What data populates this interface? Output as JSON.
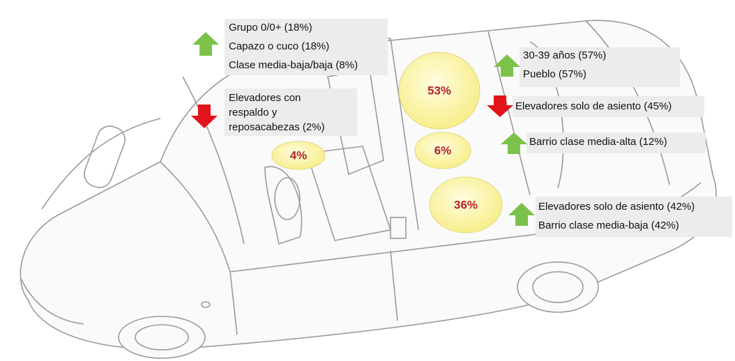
{
  "callouts": [
    [
      "Grupo 0/0+ (18%)",
      "Capazo o cuco (18%)",
      "Clase media-baja/baja (8%)"
    ],
    [
      "Elevadores con",
      "respaldo y",
      "reposacabezas (2%)"
    ],
    [
      "30-39 años (57%)",
      "Pueblo (57%)"
    ],
    [
      "Elevadores solo de asiento (45%)"
    ],
    [
      "Barrio clase media-alta (12%)"
    ],
    [
      "Elevadores solo de asiento (42%)",
      "Barrio clase media-baja (42%)"
    ]
  ],
  "bubbles": [
    "4%",
    "53%",
    "6%",
    "36%"
  ]
}
